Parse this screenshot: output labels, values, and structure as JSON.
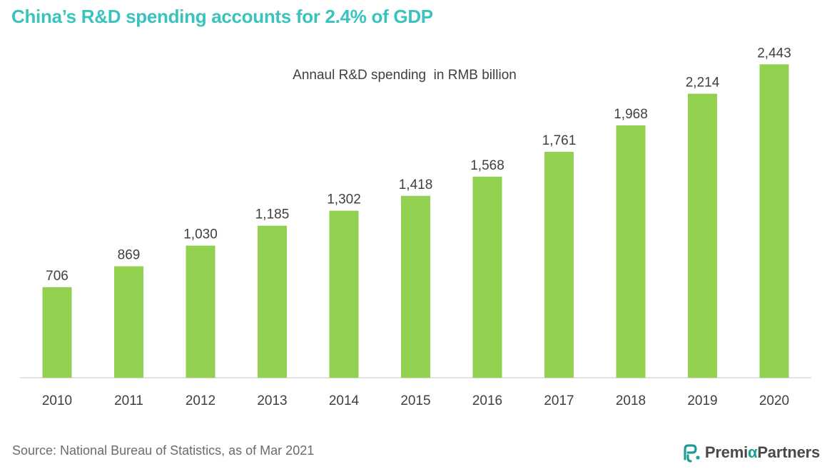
{
  "page": {
    "title": "China’s R&D spending accounts for 2.4% of GDP",
    "source": "Source: National Bureau of Statistics, as of Mar 2021",
    "logo": {
      "part1": "Premi",
      "alpha": "α",
      "part2": "Partners"
    }
  },
  "colors": {
    "title": "#39c3bd",
    "bar": "#92d050",
    "axis": "#d9d9d9",
    "text": "#404040"
  },
  "chart_data": {
    "type": "bar",
    "title": "Annaul R&D spending  in RMB billion",
    "categories": [
      "2010",
      "2011",
      "2012",
      "2013",
      "2014",
      "2015",
      "2016",
      "2017",
      "2018",
      "2019",
      "2020"
    ],
    "values": [
      706,
      869,
      1030,
      1185,
      1302,
      1418,
      1568,
      1761,
      1968,
      2214,
      2443
    ],
    "value_labels": [
      "706",
      "869",
      "1,030",
      "1,185",
      "1,302",
      "1,418",
      "1,568",
      "1,761",
      "1,968",
      "2,214",
      "2,443"
    ],
    "xlabel": "",
    "ylabel": "",
    "ylim": [
      0,
      2500
    ],
    "grid": false,
    "legend": "none"
  }
}
